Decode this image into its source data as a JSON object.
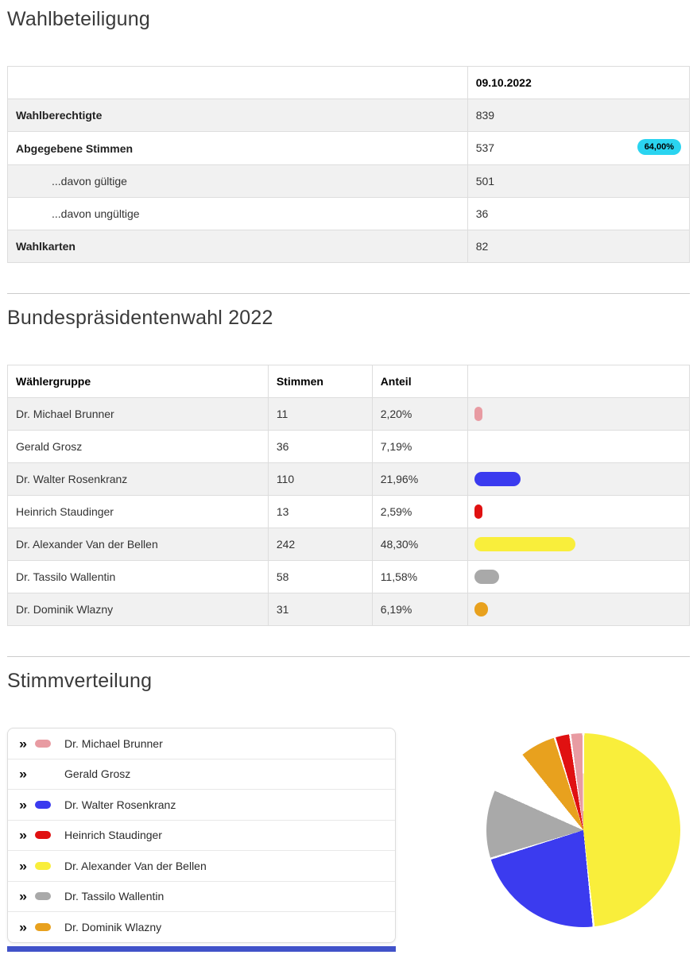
{
  "turnout": {
    "title": "Wahlbeteiligung",
    "table": {
      "date_header": "09.10.2022",
      "badge_color": "#2ad4f0",
      "rows": [
        {
          "label": "Wahlberechtigte",
          "value": "839"
        },
        {
          "label": "Abgegebene Stimmen",
          "value": "537",
          "badge": "64,00%"
        },
        {
          "label": "...davon gültige",
          "value": "501"
        },
        {
          "label": "...davon ungültige",
          "value": "36"
        },
        {
          "label": "Wahlkarten",
          "value": "82"
        }
      ]
    }
  },
  "election": {
    "title": "Bundespräsidentenwahl 2022",
    "table": {
      "headers": {
        "group": "Wählergruppe",
        "votes": "Stimmen",
        "share": "Anteil"
      },
      "bar_track_color": "#e9edf2",
      "rows": [
        {
          "name": "Dr. Michael Brunner",
          "votes": "11",
          "share": "2,20%",
          "pct": 2.2,
          "color": "#e89ba2"
        },
        {
          "name": "Gerald Grosz",
          "votes": "36",
          "share": "7,19%",
          "pct": 7.19,
          "color": "#ffffff"
        },
        {
          "name": "Dr. Walter Rosenkranz",
          "votes": "110",
          "share": "21,96%",
          "pct": 21.96,
          "color": "#3b3bef"
        },
        {
          "name": "Heinrich Staudinger",
          "votes": "13",
          "share": "2,59%",
          "pct": 2.59,
          "color": "#e01111"
        },
        {
          "name": "Dr. Alexander Van der Bellen",
          "votes": "242",
          "share": "48,30%",
          "pct": 48.3,
          "color": "#f9ee3b"
        },
        {
          "name": "Dr. Tassilo Wallentin",
          "votes": "58",
          "share": "11,58%",
          "pct": 11.58,
          "color": "#a9a9a9"
        },
        {
          "name": "Dr. Dominik Wlazny",
          "votes": "31",
          "share": "6,19%",
          "pct": 6.19,
          "color": "#e8a11e"
        }
      ]
    }
  },
  "distribution": {
    "title": "Stimmverteilung",
    "chevron": "»",
    "cutoff_bar_color": "#4152c9"
  },
  "chart_data": {
    "type": "pie",
    "title": "Stimmverteilung",
    "legend_position": "left",
    "start_angle_deg": 0,
    "direction": "clockwise",
    "slices": [
      {
        "label": "Dr. Alexander Van der Bellen",
        "value": 242,
        "pct": 48.3,
        "color": "#f9ee3b"
      },
      {
        "label": "Dr. Walter Rosenkranz",
        "value": 110,
        "pct": 21.96,
        "color": "#3b3bef"
      },
      {
        "label": "Dr. Tassilo Wallentin",
        "value": 58,
        "pct": 11.58,
        "color": "#a9a9a9"
      },
      {
        "label": "Gerald Grosz",
        "value": 36,
        "pct": 7.19,
        "color": "#ffffff"
      },
      {
        "label": "Dr. Dominik Wlazny",
        "value": 31,
        "pct": 6.19,
        "color": "#e8a11e"
      },
      {
        "label": "Heinrich Staudinger",
        "value": 13,
        "pct": 2.59,
        "color": "#e01111"
      },
      {
        "label": "Dr. Michael Brunner",
        "value": 11,
        "pct": 2.2,
        "color": "#e89ba2"
      }
    ]
  }
}
